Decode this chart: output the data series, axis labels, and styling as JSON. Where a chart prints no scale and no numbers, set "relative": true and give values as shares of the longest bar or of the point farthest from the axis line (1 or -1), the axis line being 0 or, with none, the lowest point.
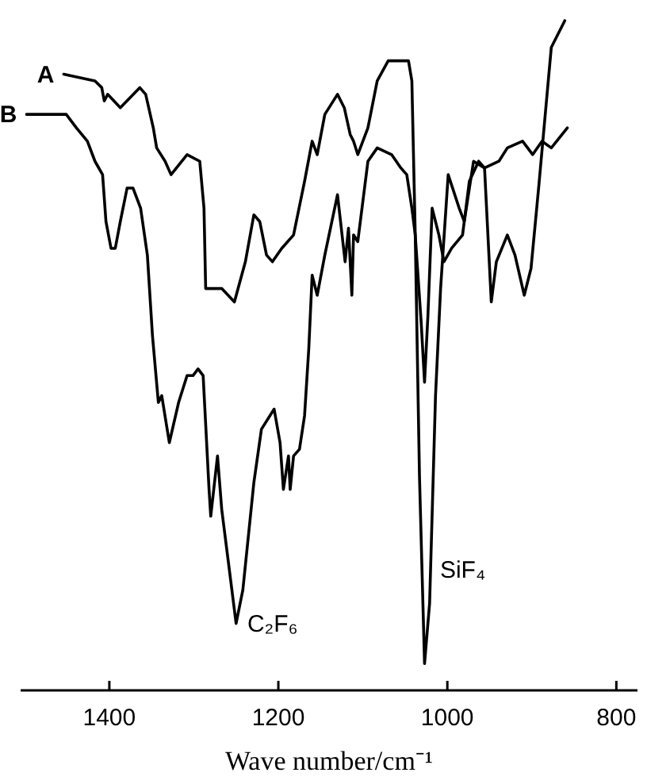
{
  "chart_data": {
    "type": "line",
    "relative": true,
    "xlabel": "Wave number/cm⁻¹",
    "xlim": [
      1505,
      775
    ],
    "xticks": [
      1400,
      1200,
      1000,
      800
    ],
    "series": [
      {
        "name": "A",
        "color": "#000000",
        "x": [
          1454,
          1417,
          1409,
          1406,
          1402,
          1387,
          1364,
          1357,
          1348,
          1344,
          1334,
          1327,
          1308,
          1293,
          1288,
          1286,
          1278,
          1272,
          1267,
          1252,
          1239,
          1229,
          1222,
          1214,
          1207,
          1196,
          1182,
          1169,
          1160,
          1154,
          1145,
          1130,
          1122,
          1115,
          1111,
          1106,
          1094,
          1083,
          1070,
          1057,
          1046,
          1042,
          1038,
          1033,
          1027,
          1021,
          1014,
          1008,
          999,
          986,
          980,
          969,
          956,
          939,
          929,
          911,
          899,
          888,
          877,
          858
        ],
        "values": [
          0.92,
          0.91,
          0.9,
          0.88,
          0.89,
          0.87,
          0.9,
          0.89,
          0.84,
          0.81,
          0.79,
          0.77,
          0.8,
          0.79,
          0.72,
          0.6,
          0.6,
          0.6,
          0.6,
          0.58,
          0.64,
          0.71,
          0.7,
          0.65,
          0.64,
          0.66,
          0.68,
          0.76,
          0.82,
          0.8,
          0.86,
          0.89,
          0.87,
          0.83,
          0.82,
          0.8,
          0.84,
          0.91,
          0.94,
          0.94,
          0.94,
          0.91,
          0.68,
          0.32,
          0.04,
          0.13,
          0.44,
          0.6,
          0.77,
          0.72,
          0.7,
          0.79,
          0.78,
          0.79,
          0.81,
          0.82,
          0.8,
          0.82,
          0.81,
          0.84
        ]
      },
      {
        "name": "B",
        "color": "#000000",
        "x": [
          1498,
          1483,
          1464,
          1451,
          1439,
          1426,
          1417,
          1408,
          1404,
          1398,
          1393,
          1387,
          1379,
          1372,
          1363,
          1355,
          1349,
          1342,
          1338,
          1329,
          1318,
          1308,
          1301,
          1295,
          1289,
          1282,
          1280,
          1272,
          1267,
          1258,
          1250,
          1242,
          1229,
          1220,
          1205,
          1198,
          1194,
          1188,
          1186,
          1182,
          1175,
          1169,
          1164,
          1160,
          1154,
          1145,
          1130,
          1121,
          1117,
          1113,
          1111,
          1106,
          1094,
          1083,
          1066,
          1055,
          1048,
          1042,
          1038,
          1031,
          1027,
          1023,
          1018,
          1010,
          1004,
          995,
          982,
          974,
          963,
          956,
          952,
          948,
          942,
          929,
          920,
          909,
          901,
          892,
          887,
          877,
          861
        ],
        "values": [
          0.86,
          0.86,
          0.86,
          0.86,
          0.84,
          0.82,
          0.79,
          0.77,
          0.7,
          0.66,
          0.66,
          0.7,
          0.75,
          0.75,
          0.72,
          0.65,
          0.53,
          0.43,
          0.44,
          0.37,
          0.43,
          0.47,
          0.47,
          0.48,
          0.47,
          0.3,
          0.26,
          0.35,
          0.27,
          0.18,
          0.1,
          0.15,
          0.31,
          0.39,
          0.42,
          0.37,
          0.3,
          0.35,
          0.3,
          0.35,
          0.36,
          0.41,
          0.51,
          0.62,
          0.59,
          0.65,
          0.74,
          0.64,
          0.69,
          0.59,
          0.68,
          0.67,
          0.79,
          0.81,
          0.8,
          0.78,
          0.77,
          0.72,
          0.68,
          0.55,
          0.46,
          0.56,
          0.72,
          0.68,
          0.64,
          0.66,
          0.68,
          0.76,
          0.79,
          0.78,
          0.68,
          0.58,
          0.64,
          0.68,
          0.65,
          0.59,
          0.63,
          0.75,
          0.82,
          0.96,
          1
        ]
      }
    ],
    "annotations": [
      {
        "text": "C₂F₆",
        "x": 1248,
        "y": 0.1
      },
      {
        "text": "SiF₄",
        "x": 1020,
        "y": 0.18
      }
    ]
  }
}
